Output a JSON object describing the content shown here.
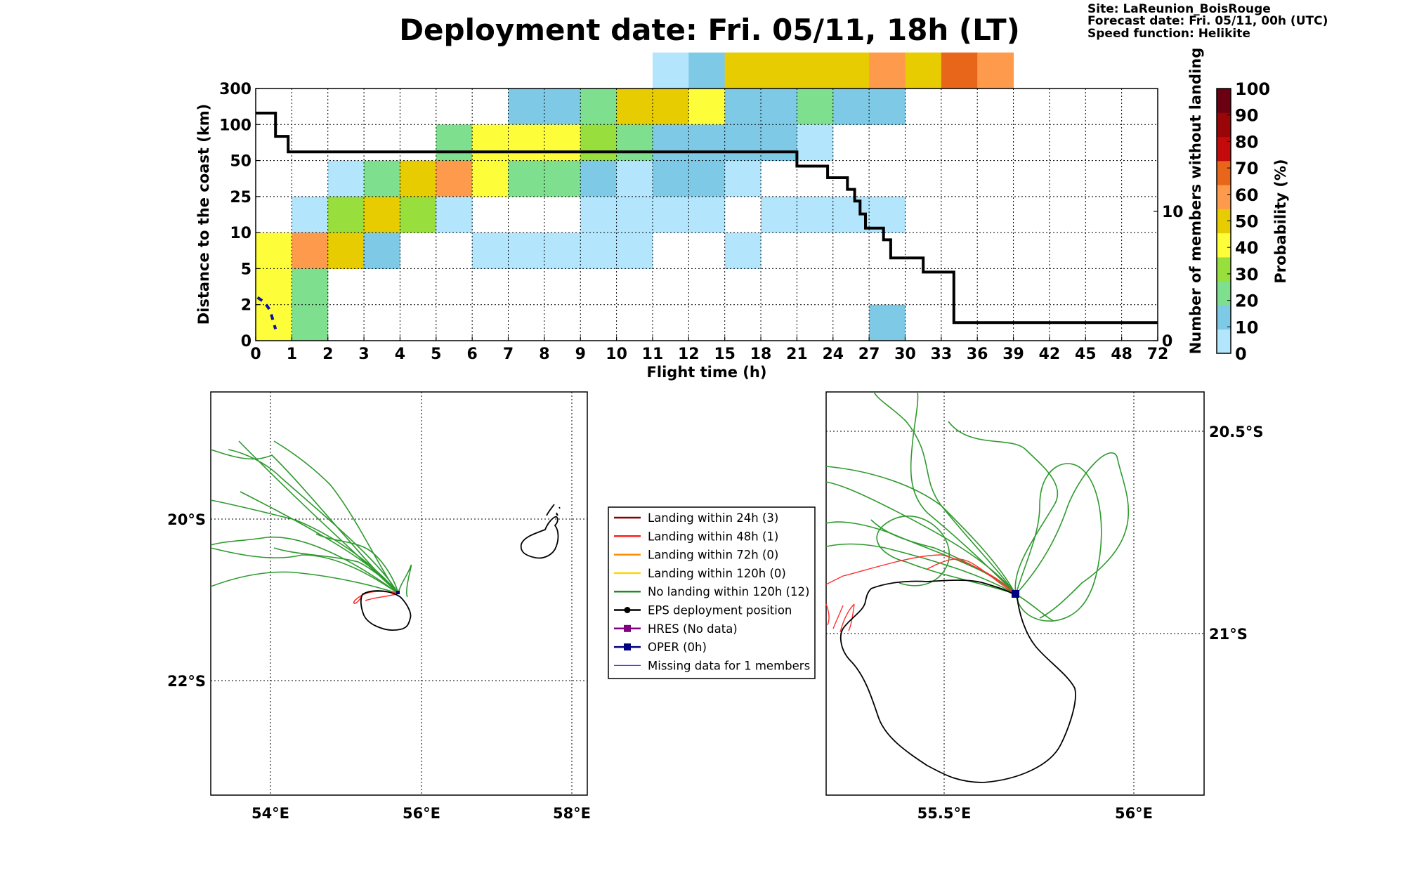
{
  "title": "Deployment date: Fri. 05/11, 18h (LT)",
  "info": {
    "site": "Site: LaReunion_BoisRouge",
    "forecast": "Forecast date: Fri. 05/11, 00h (UTC)",
    "speed": "Speed function: Helikite"
  },
  "chart_data": [
    {
      "type": "heatmap",
      "xlabel": "Flight time (h)",
      "ylabel": "Distance to the coast (km)",
      "y2label": "Number of members without landing",
      "colorbar_label": "Probability (%)",
      "x_ticks": [
        "0",
        "1",
        "2",
        "3",
        "4",
        "5",
        "6",
        "7",
        "8",
        "9",
        "10",
        "11",
        "12",
        "15",
        "18",
        "21",
        "24",
        "27",
        "30",
        "33",
        "36",
        "39",
        "42",
        "45",
        "48",
        "72"
      ],
      "y_ticks": [
        "0",
        "2",
        "5",
        "10",
        "25",
        "50",
        "100",
        "300"
      ],
      "y2_ticks": [
        "0",
        "10"
      ],
      "y2lim": [
        0,
        19.5
      ],
      "colorbar_ticks": [
        "0",
        "10",
        "20",
        "30",
        "40",
        "50",
        "60",
        "70",
        "80",
        "90",
        "100"
      ],
      "colorbar_colors": [
        "#b3e5fc",
        "#7ecae6",
        "#7ee08e",
        "#98df3e",
        "#fdfd3a",
        "#e6cc00",
        "#fd9a4b",
        "#e8661a",
        "#c40a0a",
        "#9a0508",
        "#6b0010"
      ],
      "cells": [
        [
          11,
          7,
          0
        ],
        [
          12,
          7,
          1
        ],
        [
          13,
          7,
          5
        ],
        [
          14,
          7,
          5
        ],
        [
          15,
          7,
          5
        ],
        [
          16,
          7,
          5
        ],
        [
          17,
          7,
          6
        ],
        [
          18,
          7,
          5
        ],
        [
          19,
          7,
          7
        ],
        [
          20,
          7,
          6
        ],
        [
          7,
          6,
          1
        ],
        [
          8,
          6,
          1
        ],
        [
          9,
          6,
          2
        ],
        [
          10,
          6,
          5
        ],
        [
          11,
          6,
          5
        ],
        [
          12,
          6,
          4
        ],
        [
          13,
          6,
          1
        ],
        [
          14,
          6,
          1
        ],
        [
          15,
          6,
          2
        ],
        [
          16,
          6,
          1
        ],
        [
          17,
          6,
          1
        ],
        [
          5,
          5,
          2
        ],
        [
          6,
          5,
          4
        ],
        [
          7,
          5,
          4
        ],
        [
          8,
          5,
          4
        ],
        [
          9,
          5,
          3
        ],
        [
          10,
          5,
          2
        ],
        [
          11,
          5,
          1
        ],
        [
          12,
          5,
          1
        ],
        [
          13,
          5,
          1
        ],
        [
          14,
          5,
          1
        ],
        [
          15,
          5,
          0
        ],
        [
          2,
          4,
          0
        ],
        [
          3,
          4,
          2
        ],
        [
          4,
          4,
          5
        ],
        [
          5,
          4,
          6
        ],
        [
          6,
          4,
          4
        ],
        [
          7,
          4,
          2
        ],
        [
          8,
          4,
          2
        ],
        [
          9,
          4,
          1
        ],
        [
          10,
          4,
          0
        ],
        [
          11,
          4,
          1
        ],
        [
          12,
          4,
          1
        ],
        [
          13,
          4,
          0
        ],
        [
          1,
          3,
          0
        ],
        [
          2,
          3,
          3
        ],
        [
          3,
          3,
          5
        ],
        [
          4,
          3,
          3
        ],
        [
          5,
          3,
          0
        ],
        [
          9,
          3,
          0
        ],
        [
          10,
          3,
          0
        ],
        [
          11,
          3,
          0
        ],
        [
          12,
          3,
          0
        ],
        [
          14,
          3,
          0
        ],
        [
          15,
          3,
          0
        ],
        [
          16,
          3,
          0
        ],
        [
          17,
          3,
          0
        ],
        [
          0,
          2,
          4
        ],
        [
          1,
          2,
          6
        ],
        [
          2,
          2,
          5
        ],
        [
          3,
          2,
          1
        ],
        [
          6,
          2,
          0
        ],
        [
          7,
          2,
          0
        ],
        [
          8,
          2,
          0
        ],
        [
          9,
          2,
          0
        ],
        [
          10,
          2,
          0
        ],
        [
          13,
          2,
          0
        ],
        [
          0,
          1,
          4
        ],
        [
          1,
          1,
          2
        ],
        [
          0,
          0,
          4
        ],
        [
          1,
          0,
          2
        ],
        [
          17,
          0,
          1
        ]
      ],
      "members_step": [
        [
          0,
          17.6
        ],
        [
          0.55,
          17.6
        ],
        [
          0.55,
          15.8
        ],
        [
          0.9,
          15.8
        ],
        [
          0.9,
          14.6
        ],
        [
          15.0,
          14.6
        ],
        [
          15.0,
          13.5
        ],
        [
          15.85,
          13.5
        ],
        [
          15.85,
          12.6
        ],
        [
          16.4,
          12.6
        ],
        [
          16.4,
          11.7
        ],
        [
          16.6,
          11.7
        ],
        [
          16.6,
          10.8
        ],
        [
          16.75,
          10.8
        ],
        [
          16.75,
          9.8
        ],
        [
          16.9,
          9.8
        ],
        [
          16.9,
          8.7
        ],
        [
          17.4,
          8.7
        ],
        [
          17.4,
          7.8
        ],
        [
          17.6,
          7.8
        ],
        [
          17.6,
          6.4
        ],
        [
          18.5,
          6.4
        ],
        [
          18.5,
          5.3
        ],
        [
          19.35,
          5.3
        ],
        [
          19.35,
          1.4
        ],
        [
          25,
          1.4
        ]
      ],
      "oper_trace": [
        [
          0.05,
          3.0
        ],
        [
          0.25,
          2.65
        ],
        [
          0.4,
          2.1
        ],
        [
          0.55,
          0.8
        ]
      ]
    },
    {
      "type": "map",
      "x_ticks": [
        "54°E",
        "56°E",
        "58°E"
      ],
      "y_ticks": [
        "20°S",
        "22°S"
      ]
    },
    {
      "type": "map",
      "x_ticks": [
        "55.5°E",
        "56°E"
      ],
      "y_ticks": [
        "20.5°S",
        "21°S"
      ]
    }
  ],
  "legend": [
    {
      "label": "Landing within 24h (3)",
      "color": "#8b0000",
      "marker": "none"
    },
    {
      "label": "Landing within 48h (1)",
      "color": "#ff2020",
      "marker": "none"
    },
    {
      "label": "Landing within 72h (0)",
      "color": "#ff8c00",
      "marker": "none"
    },
    {
      "label": "Landing within 120h (0)",
      "color": "#ffd700",
      "marker": "none"
    },
    {
      "label": "No landing within 120h (12)",
      "color": "#228b22",
      "marker": "none"
    },
    {
      "label": "EPS deployment position",
      "color": "#000000",
      "marker": "circle"
    },
    {
      "label": "HRES (No data)",
      "color": "#800080",
      "marker": "square"
    },
    {
      "label": "OPER (0h)",
      "color": "#000080",
      "marker": "square"
    },
    {
      "label": "Missing data for 1 members",
      "color": "#4040ff",
      "marker": "thin"
    }
  ]
}
